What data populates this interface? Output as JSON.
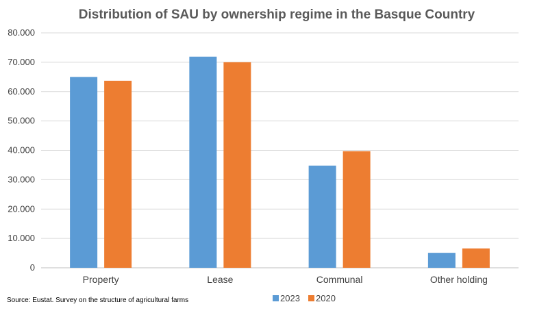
{
  "chart_data": {
    "type": "bar",
    "title": "Distribution of SAU by ownership regime in the Basque Country",
    "categories": [
      "Property",
      "Lease",
      "Communal",
      "Other holding"
    ],
    "series": [
      {
        "name": "2023",
        "values": [
          65000,
          71900,
          34800,
          5100
        ],
        "color": "#5B9BD5"
      },
      {
        "name": "2020",
        "values": [
          63700,
          70000,
          39700,
          6600
        ],
        "color": "#ED7D31"
      }
    ],
    "ylim": [
      0,
      80000
    ],
    "yticks": [
      0,
      10000,
      20000,
      30000,
      40000,
      50000,
      60000,
      70000,
      80000
    ],
    "ytick_labels": [
      "0",
      "10.000",
      "20.000",
      "30.000",
      "40.000",
      "50.000",
      "60.000",
      "70.000",
      "80.000"
    ],
    "grid": true,
    "legend_position": "bottom",
    "source": "Source: Eustat. Survey on the structure of agricultural farms"
  }
}
